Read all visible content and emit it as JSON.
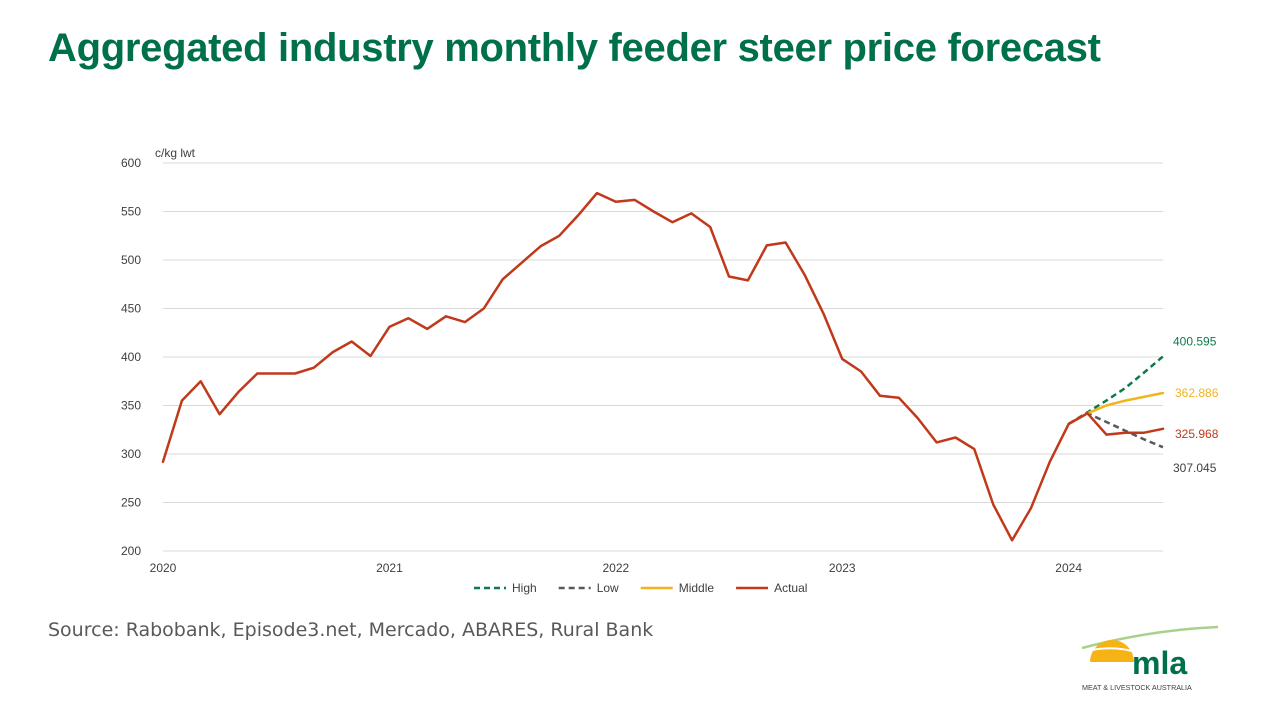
{
  "title": "Aggregated industry monthly feeder steer price forecast",
  "source": "Source: Rabobank, Episode3.net, Mercado, ABARES, Rural Bank",
  "logo": {
    "text": "mla",
    "tagline": "MEAT & LIVESTOCK AUSTRALIA",
    "colors": {
      "sun": "#f5b316",
      "text": "#00704a",
      "swoosh": "#a9d18e"
    }
  },
  "chart_data": {
    "type": "line",
    "ylabel": "c/kg lwt",
    "ylim": [
      200,
      600
    ],
    "yticks": [
      200,
      250,
      300,
      350,
      400,
      450,
      500,
      550,
      600
    ],
    "xlim": [
      "2020-01",
      "2024-06"
    ],
    "xticks": [
      "2020",
      "2021",
      "2022",
      "2023",
      "2024"
    ],
    "grid": "horizontal",
    "legend_position": "bottom",
    "series": [
      {
        "name": "High",
        "color": "#0e7a4a",
        "dash": true,
        "x": [
          "2024-01",
          "2024-02",
          "2024-03",
          "2024-04",
          "2024-05",
          "2024-06"
        ],
        "values": [
          331,
          343,
          355,
          368,
          384,
          400.595
        ],
        "end_label": "400.595"
      },
      {
        "name": "Low",
        "color": "#595959",
        "dash": true,
        "x": [
          "2024-01",
          "2024-02",
          "2024-03",
          "2024-04",
          "2024-05",
          "2024-06"
        ],
        "values": [
          331,
          342,
          333,
          324,
          315,
          307.045
        ],
        "end_label": "307.045"
      },
      {
        "name": "Middle",
        "color": "#f2b31b",
        "dash": false,
        "x": [
          "2024-01",
          "2024-02",
          "2024-03",
          "2024-04",
          "2024-05",
          "2024-06"
        ],
        "values": [
          331,
          342,
          350,
          355,
          359,
          362.886
        ],
        "end_label": "362.886"
      },
      {
        "name": "Actual",
        "color": "#c0391b",
        "dash": false,
        "x": [
          "2020-01",
          "2020-02",
          "2020-03",
          "2020-04",
          "2020-05",
          "2020-06",
          "2020-07",
          "2020-08",
          "2020-09",
          "2020-10",
          "2020-11",
          "2020-12",
          "2021-01",
          "2021-02",
          "2021-03",
          "2021-04",
          "2021-05",
          "2021-06",
          "2021-07",
          "2021-08",
          "2021-09",
          "2021-10",
          "2021-11",
          "2021-12",
          "2022-01",
          "2022-02",
          "2022-03",
          "2022-04",
          "2022-05",
          "2022-06",
          "2022-07",
          "2022-08",
          "2022-09",
          "2022-10",
          "2022-11",
          "2022-12",
          "2023-01",
          "2023-02",
          "2023-03",
          "2023-04",
          "2023-05",
          "2023-06",
          "2023-07",
          "2023-08",
          "2023-09",
          "2023-10",
          "2023-11",
          "2023-12",
          "2024-01",
          "2024-02",
          "2024-03",
          "2024-04",
          "2024-05",
          "2024-06"
        ],
        "values": [
          292,
          355,
          375,
          341,
          364,
          383,
          383,
          383,
          389,
          405,
          416,
          401,
          431,
          440,
          429,
          442,
          436,
          450,
          480,
          497,
          514,
          525,
          546,
          569,
          560,
          562,
          550,
          539,
          548,
          534,
          483,
          479,
          515,
          518,
          485,
          445,
          398,
          385,
          360,
          358,
          337,
          312,
          317,
          305,
          248,
          211,
          244,
          292,
          331,
          342,
          320,
          322,
          322,
          325.968
        ],
        "end_label": "325.968"
      }
    ]
  }
}
